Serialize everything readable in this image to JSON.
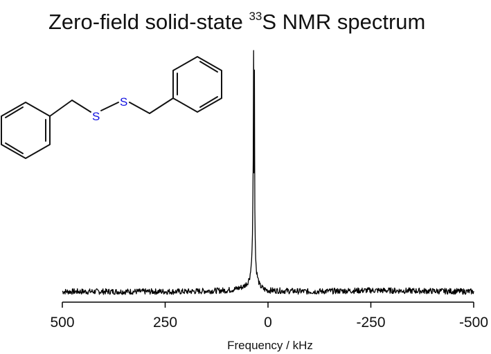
{
  "title": {
    "prefix": "Zero-field solid-state ",
    "superscript": "33",
    "suffix": "S NMR spectrum"
  },
  "molecule": {
    "name": "dibenzyl disulfide",
    "atom_labels": [
      "S",
      "S"
    ],
    "sulfur_color": "#1010e0",
    "bond_color": "#111111"
  },
  "chart_data": {
    "type": "line",
    "title": "Zero-field solid-state 33S NMR spectrum",
    "xlabel": "Frequency  / kHz",
    "ylabel": "",
    "x_reversed": true,
    "xlim": [
      500,
      -500
    ],
    "ylim": [
      0,
      1
    ],
    "xticks": [
      500,
      250,
      0,
      -250,
      -500
    ],
    "xtick_labels": [
      "500",
      "250",
      "0",
      "-250",
      "-500"
    ],
    "grid": false,
    "legend": "none",
    "series": [
      {
        "x": [
          500,
          200,
          100,
          80,
          60,
          50,
          45,
          42,
          40,
          38,
          37,
          36,
          35.5,
          35,
          34.5,
          34,
          33.5,
          33,
          32.5,
          32,
          31,
          30,
          28,
          25,
          20,
          10,
          0,
          -100,
          -250,
          -500
        ],
        "y": [
          0.015,
          0.015,
          0.02,
          0.025,
          0.035,
          0.05,
          0.07,
          0.1,
          0.14,
          0.22,
          0.35,
          0.55,
          0.75,
          1.0,
          0.8,
          0.5,
          0.65,
          0.92,
          0.6,
          0.35,
          0.22,
          0.15,
          0.1,
          0.07,
          0.04,
          0.025,
          0.02,
          0.015,
          0.02,
          0.015
        ],
        "color": "#000000"
      }
    ],
    "noise_level": 0.012
  }
}
